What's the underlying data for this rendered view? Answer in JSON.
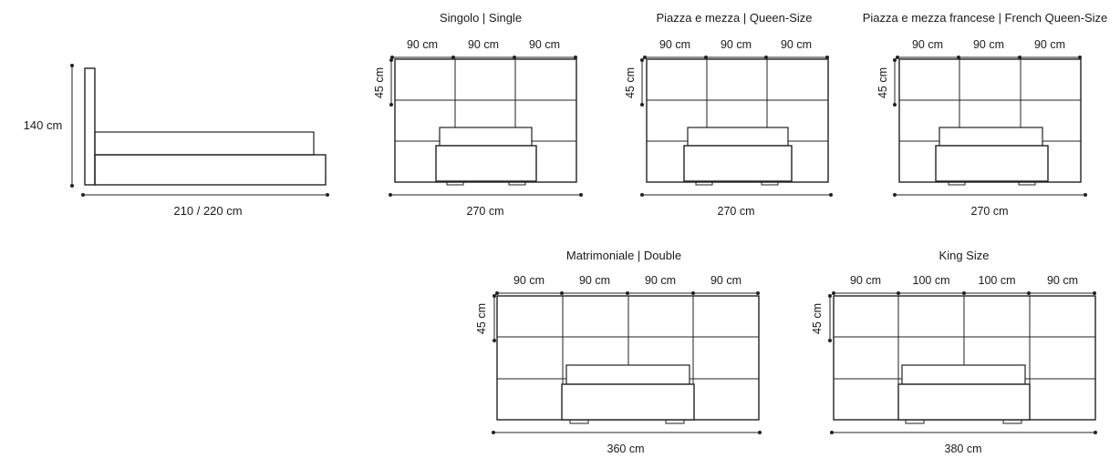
{
  "side_view": {
    "height_label": "140 cm",
    "length_label": "210 / 220 cm"
  },
  "variants": [
    {
      "title": "Singolo | Single",
      "segment_labels": [
        "90 cm",
        "90 cm",
        "90 cm"
      ],
      "height_label": "45 cm",
      "total_label": "270 cm"
    },
    {
      "title": "Piazza e mezza | Queen-Size",
      "segment_labels": [
        "90 cm",
        "90 cm",
        "90 cm"
      ],
      "height_label": "45 cm",
      "total_label": "270 cm"
    },
    {
      "title": "Piazza e mezza francese | French Queen-Size",
      "segment_labels": [
        "90 cm",
        "90 cm",
        "90 cm"
      ],
      "height_label": "45 cm",
      "total_label": "270 cm"
    },
    {
      "title": "Matrimoniale | Double",
      "segment_labels": [
        "90 cm",
        "90 cm",
        "90 cm",
        "90 cm"
      ],
      "height_label": "45 cm",
      "total_label": "360 cm"
    },
    {
      "title": "King Size",
      "segment_labels": [
        "90 cm",
        "100 cm",
        "100 cm",
        "90 cm"
      ],
      "height_label": "45 cm",
      "total_label": "380 cm"
    }
  ]
}
